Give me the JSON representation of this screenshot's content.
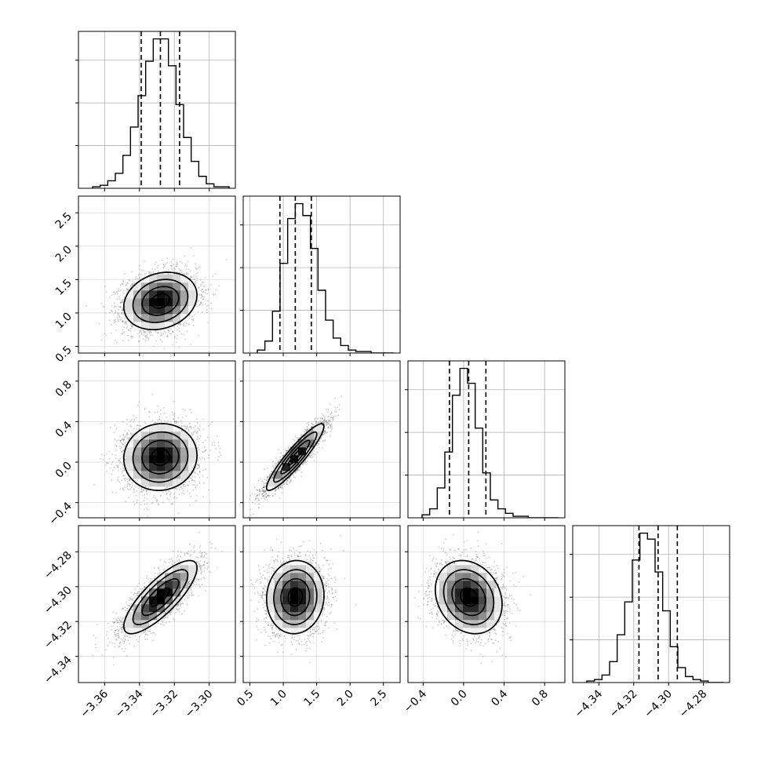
{
  "colors": {
    "ink": "#000000",
    "grid": "#b0b0b0",
    "background": "#ffffff"
  },
  "chart_data": {
    "type": "corner",
    "title": "",
    "parameters": [
      {
        "xlim": [
          -3.375,
          -3.285
        ],
        "ticks": [
          -3.36,
          -3.34,
          -3.32,
          -3.3
        ],
        "tick_labels": [
          "−3.36",
          "−3.34",
          "−3.32",
          "−3.30"
        ],
        "xlabel": ""
      },
      {
        "xlim": [
          0.4,
          2.75
        ],
        "ticks": [
          0.5,
          1.0,
          1.5,
          2.0,
          2.5
        ],
        "tick_labels": [
          "0.5",
          "1.0",
          "1.5",
          "2.0",
          "2.5"
        ],
        "xlabel": ""
      },
      {
        "xlim": [
          -0.55,
          1.0
        ],
        "ticks": [
          -0.4,
          0.0,
          0.4,
          0.8
        ],
        "tick_labels": [
          "−0.4",
          "0.0",
          "0.4",
          "0.8"
        ],
        "xlabel": ""
      },
      {
        "xlim": [
          -4.355,
          -4.265
        ],
        "ticks": [
          -4.34,
          -4.32,
          -4.3,
          -4.28
        ],
        "tick_labels": [
          "−4.34",
          "−4.32",
          "−4.30",
          "−4.28"
        ],
        "xlabel": ""
      }
    ],
    "histograms": [
      {
        "param": 0,
        "quantiles": [
          -3.339,
          -3.328,
          -3.317
        ],
        "values": [
          1,
          2,
          5,
          10,
          22,
          41,
          62,
          85,
          100,
          100,
          82,
          56,
          34,
          18,
          8,
          3,
          1,
          1
        ]
      },
      {
        "param": 1,
        "quantiles": [
          0.95,
          1.18,
          1.42
        ],
        "values": [
          2,
          8,
          28,
          60,
          90,
          100,
          92,
          70,
          42,
          22,
          10,
          5,
          2,
          1,
          1,
          0,
          0,
          0
        ]
      },
      {
        "param": 2,
        "quantiles": [
          -0.14,
          0.05,
          0.22
        ],
        "values": [
          2,
          6,
          20,
          44,
          82,
          100,
          90,
          60,
          30,
          12,
          6,
          3,
          1,
          1,
          0,
          0,
          0,
          0
        ]
      },
      {
        "param": 3,
        "quantiles": [
          -4.317,
          -4.306,
          -4.295
        ],
        "values": [
          1,
          2,
          5,
          14,
          32,
          54,
          82,
          100,
          96,
          74,
          48,
          24,
          10,
          4,
          2,
          1,
          0,
          0
        ]
      }
    ],
    "pairs": [
      {
        "x_param": 0,
        "y_param": 1,
        "mean": [
          -3.328,
          1.18
        ],
        "sd": [
          0.0105,
          0.215
        ],
        "corr": 0.2
      },
      {
        "x_param": 0,
        "y_param": 2,
        "mean": [
          -3.328,
          0.05
        ],
        "sd": [
          0.0105,
          0.165
        ],
        "corr": 0.05
      },
      {
        "x_param": 1,
        "y_param": 2,
        "mean": [
          1.18,
          0.05
        ],
        "sd": [
          0.215,
          0.165
        ],
        "corr": 0.92
      },
      {
        "x_param": 0,
        "y_param": 3,
        "mean": [
          -3.328,
          -4.306
        ],
        "sd": [
          0.0105,
          0.0105
        ],
        "corr": 0.8
      },
      {
        "x_param": 1,
        "y_param": 3,
        "mean": [
          1.18,
          -4.306
        ],
        "sd": [
          0.215,
          0.0105
        ],
        "corr": 0.05
      },
      {
        "x_param": 2,
        "y_param": 3,
        "mean": [
          0.05,
          -4.306
        ],
        "sd": [
          0.165,
          0.0105
        ],
        "corr": -0.2
      }
    ],
    "contour_levels": [
      0.5,
      1.0,
      1.5,
      2.0
    ],
    "grid": true,
    "legend": "none"
  }
}
